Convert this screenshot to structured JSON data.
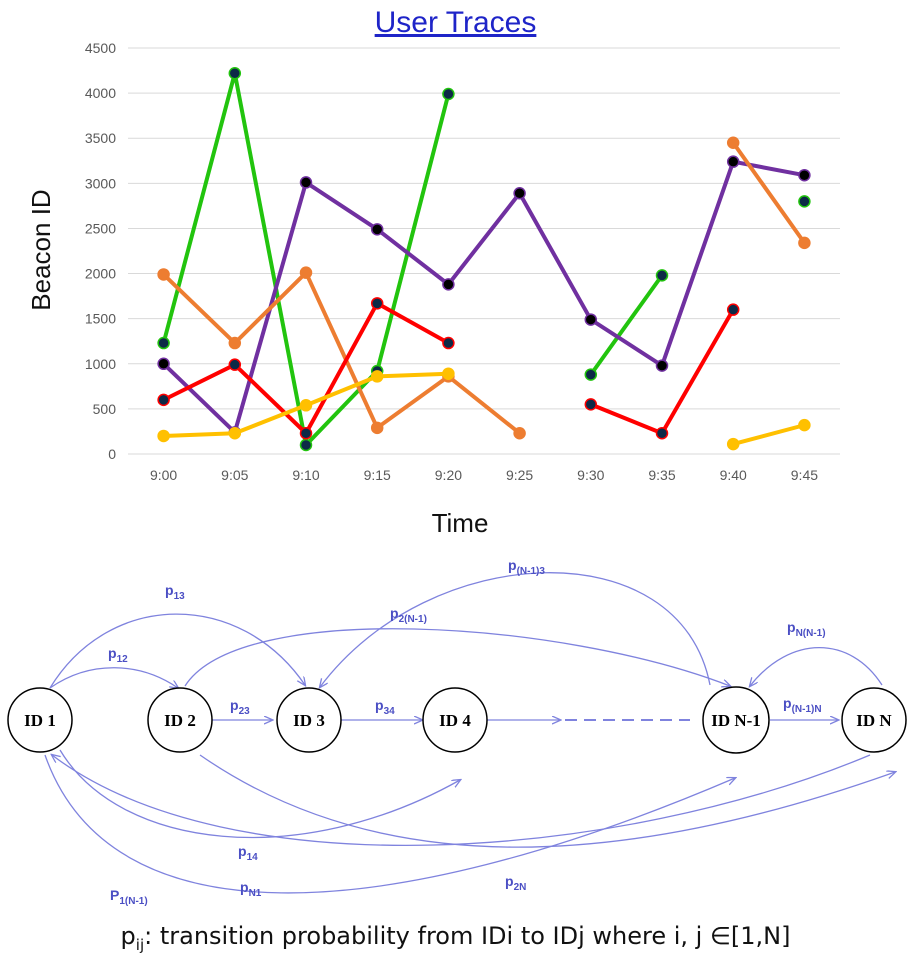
{
  "chart_data": {
    "type": "line",
    "title": "User Traces",
    "xlabel": "Time",
    "ylabel": "Beacon ID",
    "categories": [
      "9:00",
      "9:05",
      "9:10",
      "9:15",
      "9:20",
      "9:25",
      "9:30",
      "9:35",
      "9:40",
      "9:45"
    ],
    "ylim": [
      0,
      4500
    ],
    "yticks": [
      0,
      500,
      1000,
      1500,
      2000,
      2500,
      3000,
      3500,
      4000,
      4500
    ],
    "grid": true,
    "series": [
      {
        "color": "#22c40e",
        "marker": "#0d2a47",
        "values": [
          1230,
          4220,
          100,
          920,
          3990,
          null,
          880,
          1980,
          null,
          2800
        ]
      },
      {
        "color": "#7030a0",
        "marker": "#000000",
        "values": [
          1000,
          240,
          3010,
          2490,
          1880,
          2890,
          1490,
          980,
          3240,
          3090
        ]
      },
      {
        "color": "#ed7d31",
        "marker": "#ed7d31",
        "values": [
          1990,
          1230,
          2010,
          290,
          860,
          230,
          null,
          null,
          3450,
          2340
        ]
      },
      {
        "color": "#ff0000",
        "marker": "#0d2a47",
        "values": [
          600,
          990,
          230,
          1670,
          1230,
          null,
          550,
          230,
          1600,
          null
        ]
      },
      {
        "color": "#ffc000",
        "marker": "#ffc000",
        "values": [
          200,
          230,
          540,
          860,
          890,
          null,
          null,
          null,
          110,
          320
        ]
      }
    ]
  },
  "diagram": {
    "nodes": [
      {
        "id": "id1",
        "label": "ID 1"
      },
      {
        "id": "id2",
        "label": "ID 2"
      },
      {
        "id": "id3",
        "label": "ID 3"
      },
      {
        "id": "id4",
        "label": "ID 4"
      },
      {
        "id": "idn1",
        "label": "ID N-1"
      },
      {
        "id": "idn",
        "label": "ID N"
      }
    ],
    "edge_labels": [
      {
        "id": "p13",
        "base": "p",
        "sub": "13"
      },
      {
        "id": "p12",
        "base": "p",
        "sub": "12"
      },
      {
        "id": "p23",
        "base": "p",
        "sub": "23"
      },
      {
        "id": "p34",
        "base": "p",
        "sub": "34"
      },
      {
        "id": "pn13",
        "base": "p",
        "sub": "(N-1)3"
      },
      {
        "id": "p2n1",
        "base": "p",
        "sub": "2(N-1)"
      },
      {
        "id": "pnn1",
        "base": "p",
        "sub": "N(N-1)"
      },
      {
        "id": "pn1n",
        "base": "p",
        "sub": "(N-1)N"
      },
      {
        "id": "p14",
        "base": "p",
        "sub": "14"
      },
      {
        "id": "p1n1",
        "base": "P",
        "sub": "1(N-1)"
      },
      {
        "id": "pn1",
        "base": "p",
        "sub": "N1"
      },
      {
        "id": "p2n",
        "base": "p",
        "sub": "2N"
      }
    ],
    "edge_color": "#7f83de"
  },
  "caption": {
    "p": "p",
    "sub": "ij",
    "text": ": transition probability from IDi to IDj where i, j ∈[1,N]"
  }
}
